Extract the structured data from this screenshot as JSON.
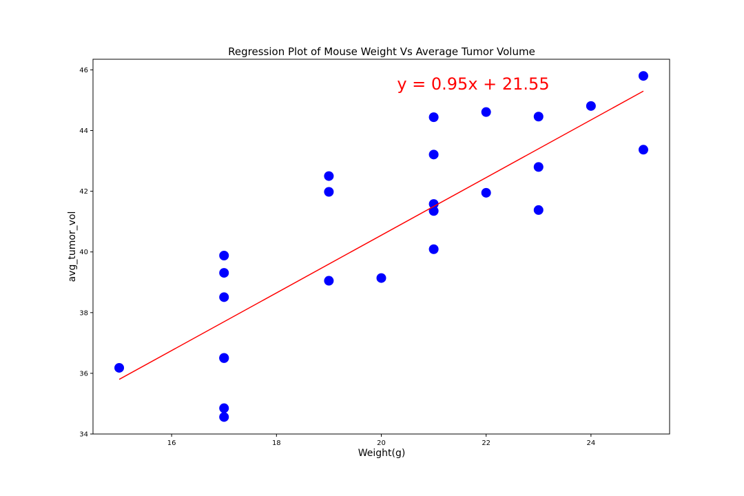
{
  "chart_data": {
    "type": "scatter",
    "title": "Regression Plot of Mouse Weight Vs Average Tumor Volume",
    "xlabel": "Weight(g)",
    "ylabel": "avg_tumor_vol",
    "xlim": [
      14.5,
      25.5
    ],
    "ylim": [
      34,
      46.35
    ],
    "xticks": [
      16,
      18,
      20,
      22,
      24
    ],
    "yticks": [
      34,
      36,
      38,
      40,
      42,
      44,
      46
    ],
    "grid": false,
    "marker_color": "#0000ff",
    "line_color": "#ff0000",
    "points": [
      {
        "x": 15,
        "y": 36.18
      },
      {
        "x": 17,
        "y": 39.88
      },
      {
        "x": 17,
        "y": 39.31
      },
      {
        "x": 17,
        "y": 38.51
      },
      {
        "x": 17,
        "y": 36.51
      },
      {
        "x": 17,
        "y": 36.5
      },
      {
        "x": 17,
        "y": 34.85
      },
      {
        "x": 17,
        "y": 34.56
      },
      {
        "x": 19,
        "y": 42.5
      },
      {
        "x": 19,
        "y": 41.98
      },
      {
        "x": 19,
        "y": 39.05
      },
      {
        "x": 20,
        "y": 39.14
      },
      {
        "x": 21,
        "y": 44.44
      },
      {
        "x": 21,
        "y": 43.21
      },
      {
        "x": 21,
        "y": 41.58
      },
      {
        "x": 21,
        "y": 41.35
      },
      {
        "x": 21,
        "y": 40.09
      },
      {
        "x": 22,
        "y": 44.61
      },
      {
        "x": 22,
        "y": 41.95
      },
      {
        "x": 23,
        "y": 44.46
      },
      {
        "x": 23,
        "y": 42.8
      },
      {
        "x": 23,
        "y": 41.38
      },
      {
        "x": 24,
        "y": 44.81
      },
      {
        "x": 25,
        "y": 45.8
      },
      {
        "x": 25,
        "y": 43.37
      }
    ],
    "regression": {
      "slope": 0.95,
      "intercept": 21.55,
      "x_range": [
        15,
        25
      ],
      "equation_label": "y = 0.95x + 21.55",
      "equation_position": {
        "x": 20.3,
        "y": 45.35
      }
    }
  }
}
